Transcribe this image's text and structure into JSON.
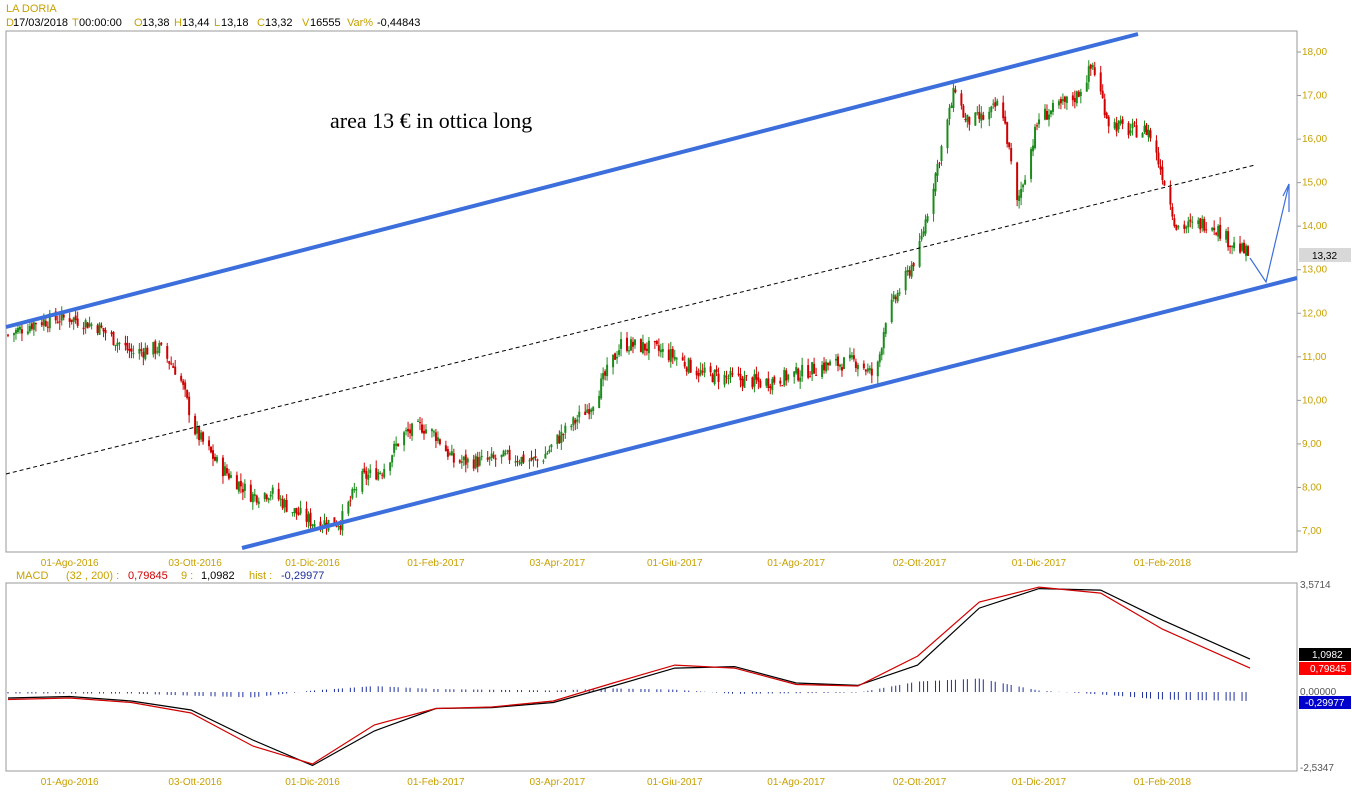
{
  "header": {
    "title": "LA DORIA",
    "date_key": "D",
    "date": "17/03/2018",
    "time_key": "T",
    "time": "00:00:00",
    "open_key": "O",
    "open": "13,38",
    "high_key": "H",
    "high": "13,44",
    "low_key": "L",
    "low": "13,18",
    "close_key": "C",
    "close": "13,32",
    "volume_key": "V",
    "volume": "16555",
    "var_key": "Var%",
    "var": "-0,44843"
  },
  "macd_header": {
    "label": "MACD",
    "params": "(32 , 200) :",
    "macd": "0,79845",
    "signal_label": "9 :",
    "signal": "1,0982",
    "hist_label": "hist :",
    "hist": "-0,29977"
  },
  "annotation": "area 13 € in ottica long",
  "colors": {
    "bull": "#1b8c1b",
    "bear": "#d10000",
    "channel": "#3c6fdc",
    "macd": "#d10000",
    "signal": "#000000",
    "hist": "#1c2e9e",
    "axis_text": "#c8a000"
  },
  "chart_data": [
    {
      "type": "line",
      "subtype": "candlestick",
      "title": "LA DORIA",
      "x_ticks": [
        "01-Ago-2016",
        "03-Ott-2016",
        "01-Dic-2016",
        "01-Feb-2017",
        "03-Apr-2017",
        "01-Giu-2017",
        "01-Ago-2017",
        "02-Ott-2017",
        "01-Dic-2017",
        "01-Feb-2018"
      ],
      "y_ticks": [
        "7,00",
        "8,00",
        "9,00",
        "10,00",
        "11,00",
        "12,00",
        "13,00",
        "14,00",
        "15,00",
        "16,00",
        "17,00",
        "18,00"
      ],
      "ylim": [
        6.5,
        18.5
      ],
      "last_price_label": "13,32",
      "grid": false,
      "legend": "none",
      "price_path": [
        [
          "2016-07-01",
          11.5
        ],
        [
          "2016-07-15",
          11.8
        ],
        [
          "2016-08-01",
          11.9
        ],
        [
          "2016-08-15",
          11.7
        ],
        [
          "2016-09-01",
          11.1
        ],
        [
          "2016-09-15",
          11.2
        ],
        [
          "2016-09-25",
          10.6
        ],
        [
          "2016-10-03",
          9.3
        ],
        [
          "2016-10-15",
          8.5
        ],
        [
          "2016-11-01",
          7.8
        ],
        [
          "2016-11-10",
          7.9
        ],
        [
          "2016-11-20",
          7.5
        ],
        [
          "2016-12-01",
          7.2
        ],
        [
          "2016-12-15",
          7.2
        ],
        [
          "2016-12-25",
          8.2
        ],
        [
          "2017-01-05",
          8.4
        ],
        [
          "2017-01-15",
          9.2
        ],
        [
          "2017-01-25",
          9.4
        ],
        [
          "2017-02-01",
          9.2
        ],
        [
          "2017-02-10",
          8.6
        ],
        [
          "2017-02-25",
          8.6
        ],
        [
          "2017-03-10",
          8.7
        ],
        [
          "2017-03-25",
          8.6
        ],
        [
          "2017-04-03",
          9.1
        ],
        [
          "2017-04-20",
          9.9
        ],
        [
          "2017-05-05",
          11.3
        ],
        [
          "2017-05-20",
          11.2
        ],
        [
          "2017-06-01",
          11.0
        ],
        [
          "2017-06-15",
          10.6
        ],
        [
          "2017-07-01",
          10.5
        ],
        [
          "2017-07-15",
          10.4
        ],
        [
          "2017-08-01",
          10.6
        ],
        [
          "2017-08-15",
          10.8
        ],
        [
          "2017-09-01",
          10.9
        ],
        [
          "2017-09-10",
          10.5
        ],
        [
          "2017-09-15",
          11.9
        ],
        [
          "2017-09-25",
          12.8
        ],
        [
          "2017-10-02",
          13.5
        ],
        [
          "2017-10-10",
          15.2
        ],
        [
          "2017-10-20",
          17.2
        ],
        [
          "2017-10-25",
          16.4
        ],
        [
          "2017-11-05",
          16.5
        ],
        [
          "2017-11-12",
          16.9
        ],
        [
          "2017-11-20",
          14.5
        ],
        [
          "2017-12-01",
          16.5
        ],
        [
          "2017-12-10",
          16.7
        ],
        [
          "2017-12-20",
          17.0
        ],
        [
          "2017-12-28",
          17.7
        ],
        [
          "2018-01-05",
          16.4
        ],
        [
          "2018-01-15",
          16.2
        ],
        [
          "2018-01-25",
          16.2
        ],
        [
          "2018-02-01",
          15.2
        ],
        [
          "2018-02-08",
          14.0
        ],
        [
          "2018-02-15",
          14.0
        ],
        [
          "2018-02-25",
          14.1
        ],
        [
          "2018-03-08",
          13.6
        ],
        [
          "2018-03-17",
          13.32
        ]
      ]
    },
    {
      "type": "line",
      "title": "MACD",
      "y_ticks": [
        "3,5714",
        "0,00000",
        "-2,5347"
      ],
      "ylim": [
        -2.5347,
        3.5714
      ],
      "series": [
        {
          "name": "MACD",
          "values": [
            [
              "2016-07-01",
              -0.25
            ],
            [
              "2016-08-01",
              -0.2
            ],
            [
              "2016-09-01",
              -0.35
            ],
            [
              "2016-10-01",
              -0.7
            ],
            [
              "2016-11-01",
              -1.8
            ],
            [
              "2016-12-01",
              -2.4
            ],
            [
              "2017-01-01",
              -1.1
            ],
            [
              "2017-02-01",
              -0.55
            ],
            [
              "2017-03-01",
              -0.5
            ],
            [
              "2017-04-01",
              -0.3
            ],
            [
              "2017-05-01",
              0.3
            ],
            [
              "2017-06-01",
              0.9
            ],
            [
              "2017-07-01",
              0.8
            ],
            [
              "2017-08-01",
              0.25
            ],
            [
              "2017-09-01",
              0.2
            ],
            [
              "2017-10-01",
              1.2
            ],
            [
              "2017-11-01",
              3.0
            ],
            [
              "2017-12-01",
              3.5
            ],
            [
              "2018-01-01",
              3.3
            ],
            [
              "2018-02-01",
              2.1
            ],
            [
              "2018-03-17",
              0.79845
            ]
          ]
        },
        {
          "name": "9",
          "values": [
            [
              "2016-07-01",
              -0.2
            ],
            [
              "2016-08-01",
              -0.15
            ],
            [
              "2016-09-01",
              -0.3
            ],
            [
              "2016-10-01",
              -0.6
            ],
            [
              "2016-11-01",
              -1.6
            ],
            [
              "2016-12-01",
              -2.45
            ],
            [
              "2017-01-01",
              -1.3
            ],
            [
              "2017-02-01",
              -0.55
            ],
            [
              "2017-03-01",
              -0.52
            ],
            [
              "2017-04-01",
              -0.35
            ],
            [
              "2017-05-01",
              0.2
            ],
            [
              "2017-06-01",
              0.8
            ],
            [
              "2017-07-01",
              0.85
            ],
            [
              "2017-08-01",
              0.3
            ],
            [
              "2017-09-01",
              0.22
            ],
            [
              "2017-10-01",
              0.9
            ],
            [
              "2017-11-01",
              2.8
            ],
            [
              "2017-12-01",
              3.45
            ],
            [
              "2018-01-01",
              3.4
            ],
            [
              "2018-02-01",
              2.4
            ],
            [
              "2018-03-17",
              1.0982
            ]
          ]
        },
        {
          "name": "hist",
          "values": [
            [
              "2016-07-01",
              -0.05
            ],
            [
              "2016-09-01",
              -0.05
            ],
            [
              "2016-10-01",
              -0.12
            ],
            [
              "2016-11-01",
              -0.18
            ],
            [
              "2016-12-01",
              0.05
            ],
            [
              "2017-01-01",
              0.2
            ],
            [
              "2017-02-01",
              0.1
            ],
            [
              "2017-04-01",
              0.05
            ],
            [
              "2017-05-01",
              0.12
            ],
            [
              "2017-06-01",
              0.08
            ],
            [
              "2017-07-01",
              -0.06
            ],
            [
              "2017-09-01",
              -0.02
            ],
            [
              "2017-10-01",
              0.35
            ],
            [
              "2017-11-01",
              0.45
            ],
            [
              "2017-12-01",
              0.05
            ],
            [
              "2018-01-01",
              -0.08
            ],
            [
              "2018-02-01",
              -0.25
            ],
            [
              "2018-03-17",
              -0.29977
            ]
          ]
        }
      ],
      "labels": {
        "macd": "0,79845",
        "signal": "1,0982",
        "hist": "-0,29977"
      }
    }
  ]
}
